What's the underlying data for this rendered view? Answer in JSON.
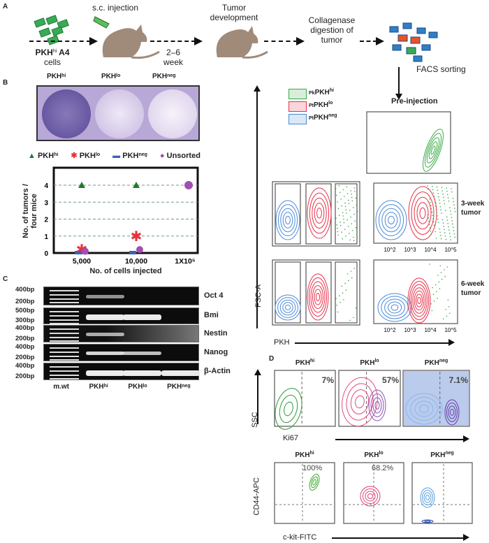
{
  "panel_a": {
    "letter": "A",
    "start_label": {
      "base": "PKH",
      "sup": "hi",
      "rest": " A4",
      "line2": "cells"
    },
    "injection": "s.c. injection",
    "duration": {
      "line1": "2–6",
      "line2": "week"
    },
    "tumor_development": {
      "line1": "Tumor",
      "line2": "development"
    },
    "digestion": {
      "line1": "Collagenase",
      "line2": "digestion of",
      "line3": "tumor"
    },
    "facs": "FACS sorting",
    "colors": {
      "mouse": "#a08a7a",
      "cells_green": "#3aaa55",
      "cells_blue": "#2f7fc8",
      "cells_red": "#e8552b"
    }
  },
  "panel_b": {
    "letter": "B",
    "well_labels": [
      {
        "base": "PKH",
        "sup": "hi"
      },
      {
        "base": "PKH",
        "sup": "lo"
      },
      {
        "base": "PKH",
        "sup": "neg"
      }
    ],
    "legend": [
      {
        "base": "PKH",
        "sup": "hi",
        "marker": "triangle",
        "color": "#1e7a2e"
      },
      {
        "base": "PKH",
        "sup": "lo",
        "marker": "star",
        "color": "#e8303a"
      },
      {
        "base": "PKH",
        "sup": "neg",
        "marker": "rect",
        "color": "#3a5fc0"
      },
      {
        "base": "Unsorted",
        "sup": "",
        "marker": "circle",
        "color": "#a050b0"
      }
    ]
  },
  "chart_data": {
    "type": "scatter",
    "xlabel": "No. of cells injected",
    "ylabel_line1": "No. of tumors /",
    "ylabel_line2": "four mice",
    "categories": [
      "5,000",
      "10,000",
      "1X10^5"
    ],
    "y_ticks": [
      "0",
      "1",
      "2",
      "3",
      "4"
    ],
    "ylim": [
      0,
      4
    ],
    "grid": "horizontal dashed",
    "legend_position": "top",
    "series": [
      {
        "name": "PKHhi",
        "values": [
          4,
          4,
          null
        ]
      },
      {
        "name": "PKHlo",
        "values": [
          0.2,
          1,
          null
        ]
      },
      {
        "name": "PKHneg",
        "values": [
          0,
          0,
          null
        ]
      },
      {
        "name": "Unsorted",
        "values": [
          0.1,
          0.2,
          4
        ]
      }
    ]
  },
  "panel_c": {
    "letter": "C",
    "rows": [
      {
        "gene": "Oct 4",
        "top_bp": "400bp",
        "bottom_bp": "200bp",
        "bands": [
          0.6,
          0,
          0
        ]
      },
      {
        "gene": "Bmi",
        "top_bp": "500bp",
        "bottom_bp": "300bp",
        "bands": [
          1,
          1,
          0
        ]
      },
      {
        "gene": "Nestin",
        "top_bp": "400bp",
        "bottom_bp": "200bp",
        "bands": [
          0.7,
          0,
          0
        ]
      },
      {
        "gene": "Nanog",
        "top_bp": "400bp",
        "bottom_bp": "200bp",
        "bands": [
          0.9,
          0.8,
          0
        ]
      },
      {
        "gene": "β-Actin",
        "top_bp": "400bp",
        "bottom_bp": "200bp",
        "bands": [
          1,
          1,
          1
        ]
      }
    ],
    "lanes": [
      {
        "base": "m.wt",
        "sup": ""
      },
      {
        "base": "PKH",
        "sup": "hi"
      },
      {
        "base": "PKH",
        "sup": "lo"
      },
      {
        "base": "PKH",
        "sup": "neg"
      }
    ]
  },
  "facs_panel": {
    "y_axis": "FSC-A",
    "x_axis": "PKH",
    "legend": [
      {
        "prefix": "Pk",
        "base": "PKH",
        "sup": "hi",
        "color": "#3aaa44"
      },
      {
        "prefix": "Pt",
        "base": "PKH",
        "sup": "lo",
        "color": "#e8304a"
      },
      {
        "prefix": "Pt",
        "base": "PKH",
        "sup": "neg",
        "color": "#4a8ad8"
      }
    ],
    "pre_injection": "Pre-injection",
    "row_3week": {
      "line1": "3-week",
      "line2": "tumor"
    },
    "row_6week": {
      "line1": "6-week",
      "line2": "tumor"
    },
    "x_ticks": [
      "10^2",
      "10^3",
      "10^4",
      "10^5"
    ]
  },
  "panel_d": {
    "letter": "D",
    "ki67": {
      "y_axis": "SSC",
      "x_axis": "Ki67",
      "plots": [
        {
          "base": "PKH",
          "sup": "hi",
          "percent": "7%",
          "color": "#2a9a3a"
        },
        {
          "base": "PKH",
          "sup": "lo",
          "percent": "57%",
          "color": "#e04a80"
        },
        {
          "base": "PKH",
          "sup": "neg",
          "percent": "7.1%",
          "color": "#2a5ab8"
        }
      ]
    },
    "cd44": {
      "y_axis": "CD44-APC",
      "x_axis": "c-kit-FITC",
      "plots": [
        {
          "base": "PKH",
          "sup": "hi",
          "percent": "100%",
          "color": "#3aaa2a"
        },
        {
          "base": "PKH",
          "sup": "lo",
          "percent": "68.2%",
          "color": "#e0407a"
        },
        {
          "base": "PKH",
          "sup": "neg",
          "percent": "",
          "color": "#5aa0e0"
        }
      ]
    }
  }
}
